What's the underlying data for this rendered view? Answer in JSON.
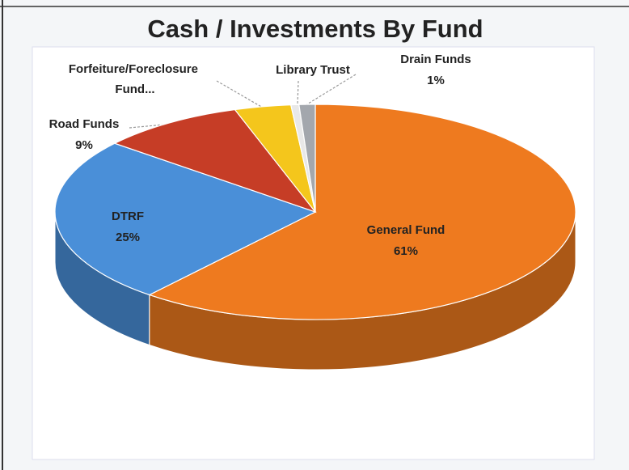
{
  "chart_data": {
    "type": "pie",
    "title": "Cash / Investments By Fund",
    "categories": [
      "General  Fund",
      "DTRF",
      "Road Funds",
      "Forfeiture/Foreclosure Fund...",
      "Library Trust",
      "Drain Funds"
    ],
    "values": [
      61,
      25,
      9,
      3.5,
      0.5,
      1
    ],
    "value_labels": [
      "61%",
      "25%",
      "9%",
      null,
      null,
      "1%"
    ],
    "colors": [
      "#ee7a1f",
      "#4a8fd8",
      "#c63d26",
      "#f4c61c",
      "#e8e8e8",
      "#a3a7ad"
    ]
  }
}
